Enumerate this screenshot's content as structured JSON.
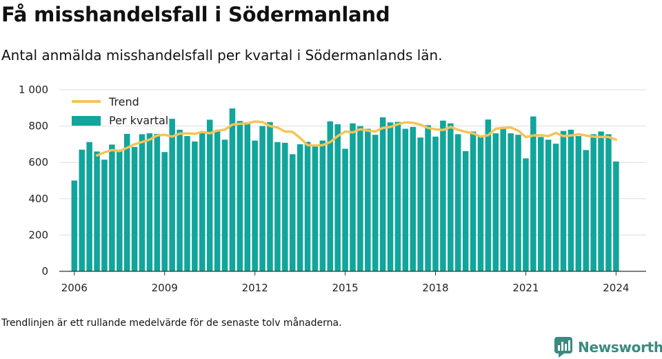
{
  "header": {
    "title": "Få misshandelsfall i Södermanland",
    "subtitle": "Antal anmälda misshandelsfall per kvartal i Södermanlands län."
  },
  "footnote": "Trendlinjen är ett rullande medelvärde för de senaste tolv månaderna.",
  "brand": {
    "name": "Newsworthy",
    "icon": "newsworthy-logo-icon",
    "color": "#3a8a80"
  },
  "colors": {
    "bar": "#11a59b",
    "trend": "#f5c457",
    "grid": "#dddddd",
    "axis": "#333333"
  },
  "chart_data": {
    "type": "bar",
    "xlabel": "",
    "ylabel": "",
    "ylim": [
      0,
      1000
    ],
    "yticks": [
      0,
      200,
      400,
      600,
      800,
      1000
    ],
    "ytick_labels": [
      "0",
      "200",
      "400",
      "600",
      "800",
      "1 000"
    ],
    "xticks": [
      2006,
      2009,
      2012,
      2015,
      2018,
      2021,
      2024
    ],
    "xlim": [
      2005.5,
      2025.0
    ],
    "grid": true,
    "legend_position": "top-left",
    "series": [
      {
        "name": "Per kvartal",
        "type": "bar",
        "x_start": "2006-Q1",
        "values": [
          500,
          670,
          712,
          660,
          615,
          698,
          670,
          757,
          685,
          755,
          760,
          757,
          657,
          840,
          780,
          745,
          715,
          770,
          835,
          778,
          725,
          897,
          828,
          820,
          720,
          800,
          822,
          712,
          708,
          645,
          700,
          713,
          690,
          720,
          826,
          810,
          675,
          815,
          800,
          785,
          752,
          848,
          820,
          823,
          785,
          795,
          737,
          805,
          742,
          830,
          815,
          755,
          662,
          770,
          745,
          836,
          760,
          785,
          760,
          752,
          622,
          853,
          740,
          725,
          703,
          773,
          780,
          745,
          668,
          755,
          770,
          755,
          605
        ]
      },
      {
        "name": "Trend",
        "type": "line",
        "x": [
          2006.75,
          2007.0,
          2007.25,
          2007.5,
          2007.75,
          2008.0,
          2008.25,
          2008.5,
          2008.75,
          2009.0,
          2009.25,
          2009.5,
          2009.75,
          2010.0,
          2010.25,
          2010.5,
          2010.75,
          2011.0,
          2011.25,
          2011.5,
          2011.75,
          2012.0,
          2012.25,
          2012.5,
          2012.75,
          2013.0,
          2013.25,
          2013.5,
          2013.75,
          2014.0,
          2014.25,
          2014.5,
          2014.75,
          2015.0,
          2015.25,
          2015.5,
          2015.75,
          2016.0,
          2016.25,
          2016.5,
          2016.75,
          2017.0,
          2017.25,
          2017.5,
          2017.75,
          2018.0,
          2018.25,
          2018.5,
          2018.75,
          2019.0,
          2019.25,
          2019.5,
          2019.75,
          2020.0,
          2020.25,
          2020.5,
          2020.75,
          2021.0,
          2021.25,
          2021.5,
          2021.75,
          2022.0,
          2022.25,
          2022.5,
          2022.75,
          2023.0,
          2023.25,
          2023.5,
          2023.75,
          2024.0
        ],
        "values": [
          638,
          655,
          668,
          662,
          680,
          700,
          712,
          725,
          748,
          752,
          742,
          758,
          760,
          757,
          768,
          760,
          775,
          780,
          808,
          812,
          815,
          825,
          822,
          800,
          792,
          770,
          768,
          735,
          695,
          693,
          695,
          712,
          745,
          770,
          765,
          783,
          775,
          770,
          790,
          795,
          810,
          820,
          818,
          808,
          790,
          782,
          778,
          795,
          780,
          768,
          760,
          742,
          750,
          785,
          790,
          792,
          775,
          740,
          748,
          750,
          745,
          762,
          745,
          748,
          755,
          748,
          742,
          740,
          740,
          725
        ]
      }
    ]
  }
}
